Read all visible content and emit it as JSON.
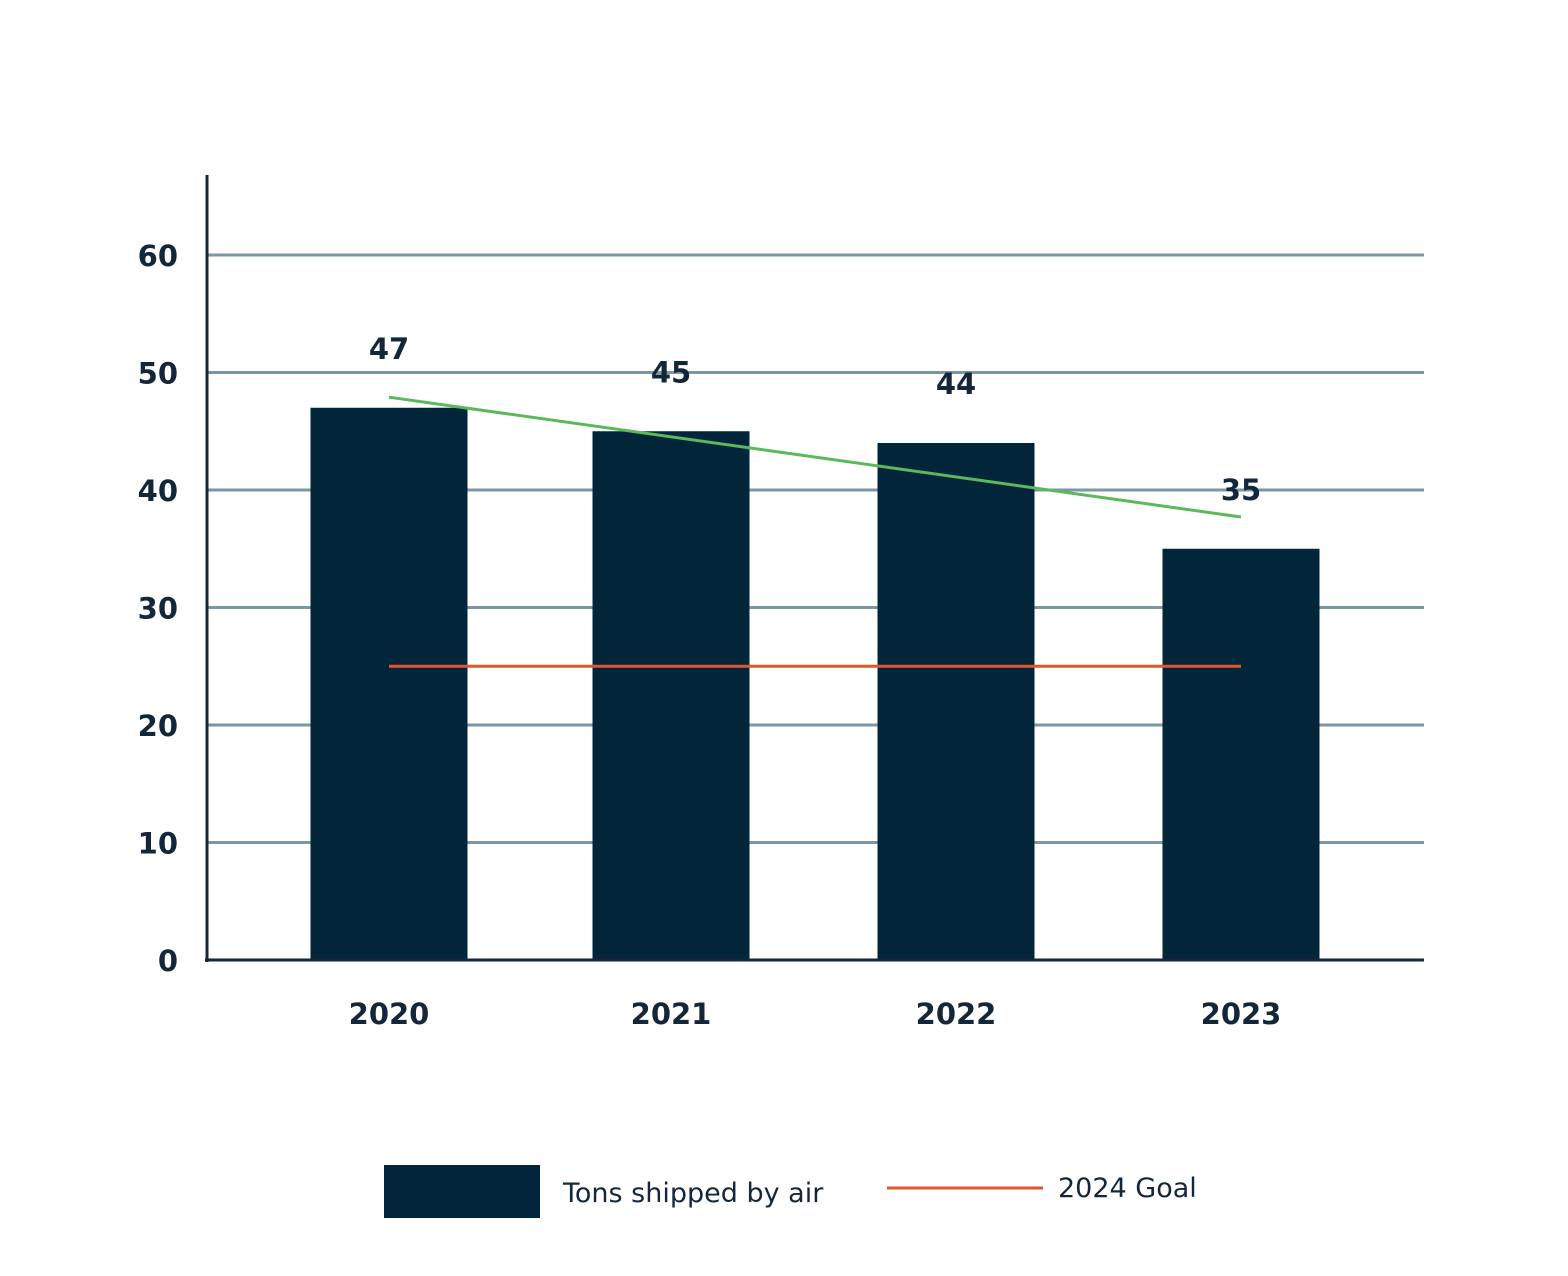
{
  "chart_data": {
    "type": "bar",
    "categories": [
      "2020",
      "2021",
      "2022",
      "2023"
    ],
    "series": [
      {
        "name": "Tons shipped by air",
        "values": [
          47,
          45,
          44,
          35
        ],
        "color": "#02253a"
      }
    ],
    "data_labels": [
      "47",
      "45",
      "44",
      "35"
    ],
    "reference_line": {
      "name": "2024 Goal",
      "value": 25,
      "color": "#e0572f"
    },
    "trendline": {
      "start": 47.9,
      "end": 37.7,
      "color": "#5cb85c"
    },
    "ylim": [
      0,
      60
    ],
    "yticks": [
      0,
      10,
      20,
      30,
      40,
      50,
      60
    ],
    "ytick_labels": [
      "0",
      "10",
      "20",
      "30",
      "40",
      "50",
      "60"
    ],
    "grid": true,
    "grid_color": "#7a97a3",
    "axis_color": "#14263a",
    "legend_position": "bottom",
    "title": "",
    "xlabel": "",
    "ylabel": ""
  }
}
